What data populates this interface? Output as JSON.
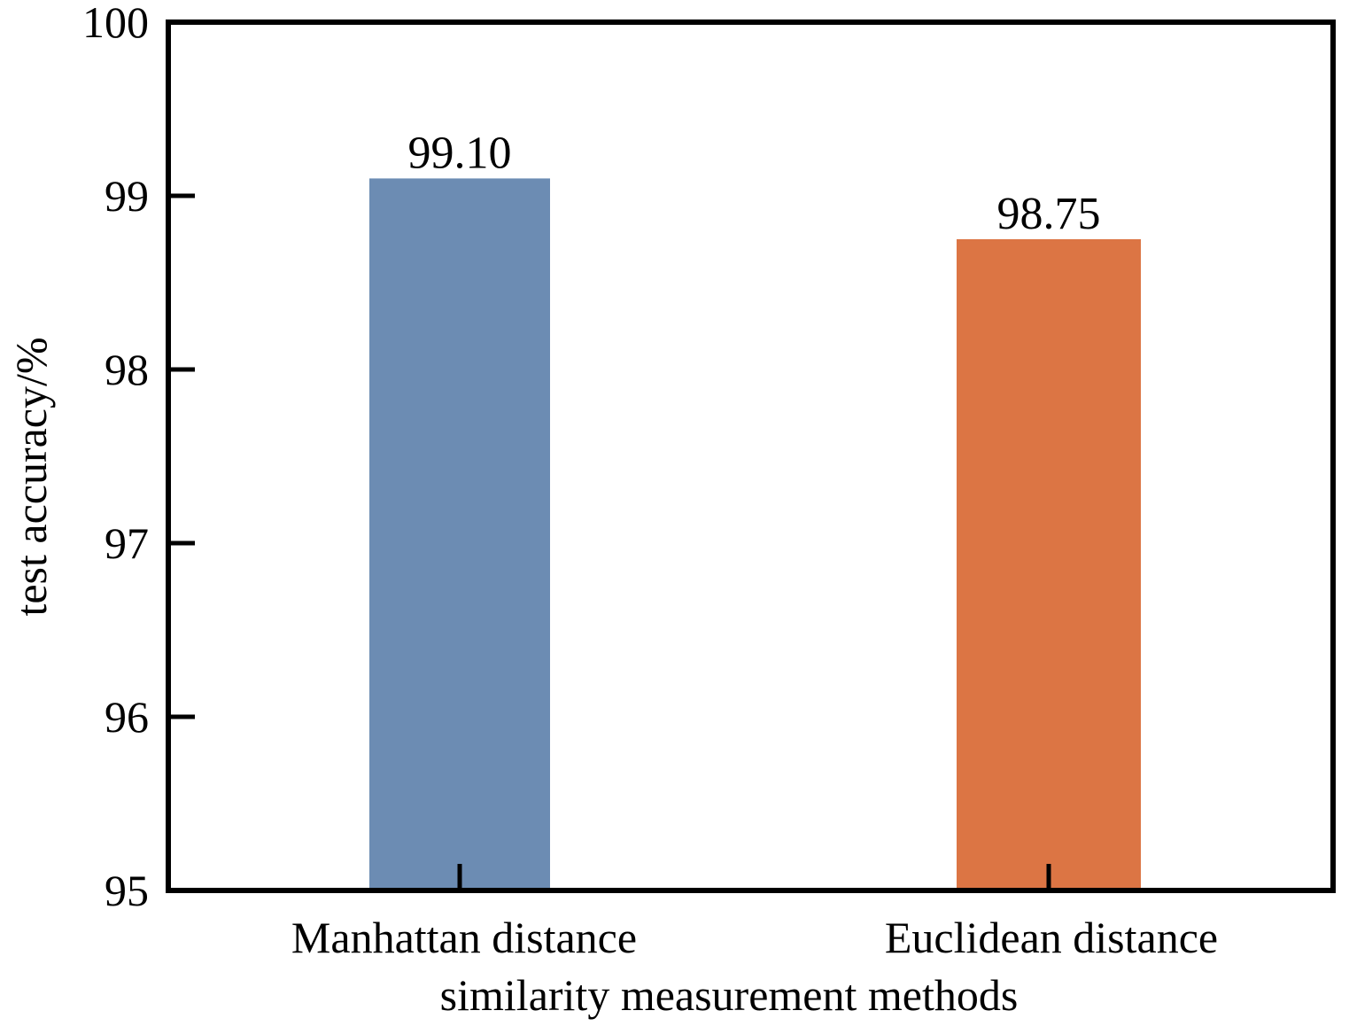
{
  "chart_data": {
    "type": "bar",
    "categories": [
      "Manhattan distance",
      "Euclidean distance"
    ],
    "values": [
      99.1,
      98.75
    ],
    "value_labels": [
      "99.10",
      "98.75"
    ],
    "colors": [
      "#6c8cb3",
      "#dc7544"
    ],
    "title": "",
    "xlabel": "similarity measurement methods",
    "ylabel": "test accuracy/%",
    "ylim": [
      95,
      100
    ],
    "yticks": [
      95,
      96,
      97,
      98,
      99,
      100
    ],
    "grid": false,
    "legend": "none"
  }
}
